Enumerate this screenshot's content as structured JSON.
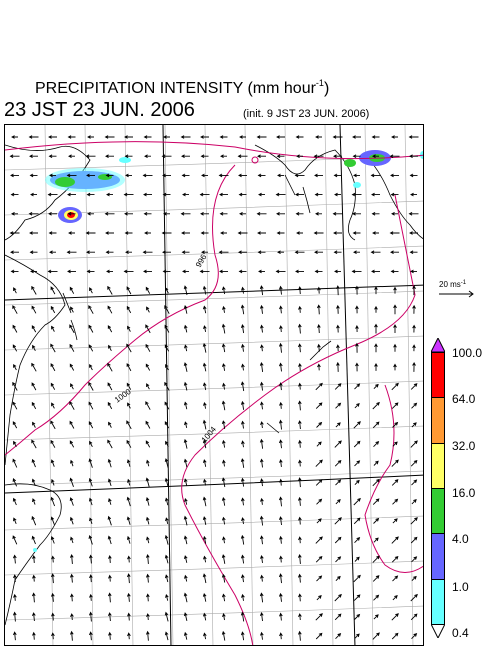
{
  "title": {
    "main": "PRECIPITATION INTENSITY (mm hour",
    "exponent": "-1",
    "closing": ")"
  },
  "subtitle": "23 JST 23 JUN. 2006",
  "init_label": "(init. 9 JST 23 JUN. 2006)",
  "reference_vector": {
    "value": "20 ms",
    "exponent": "-1"
  },
  "contour_labels": [
    "996",
    "1000",
    "1004"
  ],
  "colorbar": {
    "levels": [
      "100.0",
      "64.0",
      "32.0",
      "16.0",
      "4.0",
      "1.0",
      "0.4"
    ],
    "colors": [
      "#cc33ff",
      "#ff0000",
      "#ff9933",
      "#ffff66",
      "#33cc33",
      "#6666ff",
      "#66ffff",
      "#ffffff"
    ]
  },
  "colors": {
    "contour": "#cc0066",
    "grid": "#aaaaaa",
    "coast": "#000000"
  }
}
